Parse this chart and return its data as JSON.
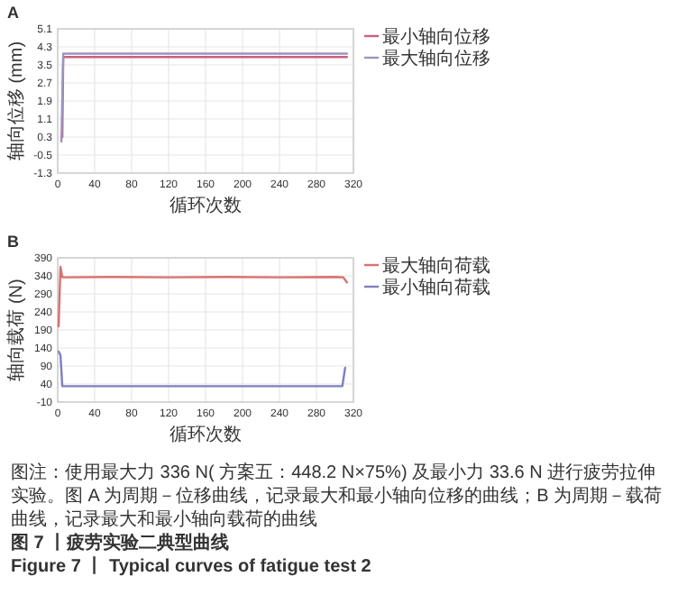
{
  "chart_data": [
    {
      "type": "line",
      "title": "A",
      "xlabel": "循环次数",
      "ylabel": "轴向位移 (mm)",
      "xlim": [
        0,
        320
      ],
      "xticks": [
        0,
        40,
        80,
        120,
        160,
        200,
        240,
        280,
        320
      ],
      "ylim": [
        -1.3,
        5.1
      ],
      "yticks": [
        -1.3,
        -0.5,
        0.3,
        1.1,
        1.9,
        2.7,
        3.5,
        4.3,
        5.1
      ],
      "grid": true,
      "legend": "right",
      "series": [
        {
          "name": "最小轴向位移",
          "color": "#c8607a",
          "x": [
            5,
            6,
            313
          ],
          "values": [
            0.3,
            3.85,
            3.85
          ]
        },
        {
          "name": "最大轴向位移",
          "color": "#9c93c0",
          "x": [
            4,
            6,
            313
          ],
          "values": [
            0.1,
            4.0,
            4.0
          ]
        }
      ]
    },
    {
      "type": "line",
      "title": "B",
      "xlabel": "循环次数",
      "ylabel": "轴向载荷 (N)",
      "xlim": [
        0,
        320
      ],
      "xticks": [
        0,
        40,
        80,
        120,
        160,
        200,
        240,
        280,
        320
      ],
      "ylim": [
        -10,
        390
      ],
      "yticks": [
        -10,
        40,
        90,
        140,
        190,
        240,
        290,
        340,
        390
      ],
      "grid": true,
      "legend": "right",
      "series": [
        {
          "name": "最大轴向荷载",
          "color": "#d9716f",
          "x": [
            1,
            3,
            5,
            60,
            120,
            180,
            240,
            300,
            309,
            313
          ],
          "values": [
            200,
            365,
            336,
            337,
            336,
            337,
            336,
            337,
            336,
            322
          ]
        },
        {
          "name": "最小轴向荷载",
          "color": "#7f7fc0",
          "x": [
            1,
            3,
            5,
            308,
            311
          ],
          "values": [
            130,
            120,
            34,
            34,
            85
          ]
        }
      ]
    },
    {
      "type": "other",
      "annotations": [
        "图注：使用最大力 336 N( 方案五：448.2 N×75%) 及最小力 33.6 N 进行疲劳拉伸实验。图 A 为周期－位移曲线，记录最大和最小轴向位移的曲线；B 为周期－载荷曲线，记录最大和最小轴向载荷的曲线",
        "图 7 丨疲劳实验二典型曲线",
        "Figure 7 丨 Typical curves of fatigue test 2"
      ]
    }
  ]
}
